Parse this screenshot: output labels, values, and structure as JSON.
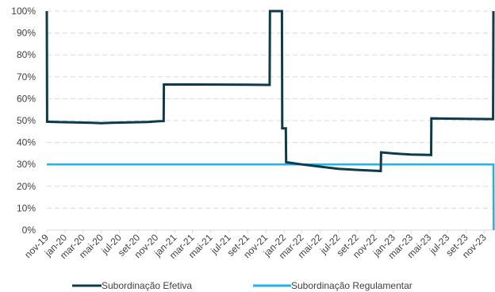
{
  "chart_data": {
    "type": "line",
    "title": "",
    "xlabel": "",
    "ylabel": "",
    "ylim": [
      0,
      100
    ],
    "y_ticks": [
      "0%",
      "10%",
      "20%",
      "30%",
      "40%",
      "50%",
      "60%",
      "70%",
      "80%",
      "90%",
      "100%"
    ],
    "x_ticks": [
      "nov-19",
      "jan-20",
      "mar-20",
      "mai-20",
      "jul-20",
      "set-20",
      "nov-20",
      "jan-21",
      "mar-21",
      "mai-21",
      "jul-21",
      "set-21",
      "nov-21",
      "jan-22",
      "mar-22",
      "mai-22",
      "jul-22",
      "set-22",
      "nov-22",
      "jan-23",
      "mar-23",
      "mai-23",
      "jul-23",
      "set-23",
      "nov-23"
    ],
    "grid": "horizontal dashed",
    "legend_position": "bottom",
    "series": [
      {
        "name": "Subordinação Efetiva",
        "color": "#0d3b4c",
        "points": [
          [
            "2019-11-01",
            100
          ],
          [
            "2019-11-02",
            49.5
          ],
          [
            "2019-12-15",
            49.3
          ],
          [
            "2020-02-01",
            49.2
          ],
          [
            "2020-04-01",
            49.0
          ],
          [
            "2020-05-01",
            48.8
          ],
          [
            "2020-06-01",
            49.0
          ],
          [
            "2020-08-01",
            49.2
          ],
          [
            "2020-10-01",
            49.4
          ],
          [
            "2020-11-10",
            49.7
          ],
          [
            "2020-11-25",
            49.8
          ],
          [
            "2020-11-26",
            66.5
          ],
          [
            "2021-04-01",
            66.5
          ],
          [
            "2021-09-01",
            66.4
          ],
          [
            "2021-11-14",
            66.3
          ],
          [
            "2021-11-15",
            100
          ],
          [
            "2021-12-25",
            100
          ],
          [
            "2021-12-26",
            46.5
          ],
          [
            "2022-01-07",
            46.5
          ],
          [
            "2022-01-08",
            31.0
          ],
          [
            "2022-03-01",
            30.0
          ],
          [
            "2022-05-01",
            29.0
          ],
          [
            "2022-07-01",
            28.0
          ],
          [
            "2022-09-01",
            27.5
          ],
          [
            "2022-11-20",
            27.0
          ],
          [
            "2022-11-21",
            35.5
          ],
          [
            "2023-01-01",
            35.0
          ],
          [
            "2023-03-01",
            34.5
          ],
          [
            "2023-05-07",
            34.3
          ],
          [
            "2023-05-08",
            51.0
          ],
          [
            "2023-07-01",
            50.9
          ],
          [
            "2023-09-01",
            50.8
          ],
          [
            "2023-11-30",
            50.7
          ],
          [
            "2023-12-01",
            100
          ]
        ]
      },
      {
        "name": "Subordinação Regulamentar",
        "color": "#1eb4e6",
        "points": [
          [
            "2019-11-01",
            30
          ],
          [
            "2023-12-01",
            30
          ],
          [
            "2023-12-02",
            0
          ]
        ]
      }
    ]
  }
}
